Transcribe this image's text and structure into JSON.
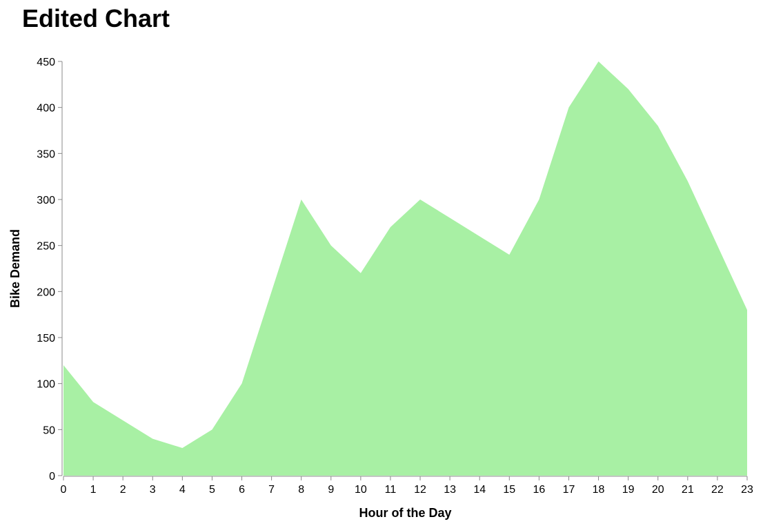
{
  "chart_data": {
    "type": "area",
    "title": "Edited Chart",
    "xlabel": "Hour of the Day",
    "ylabel": "Bike Demand",
    "x": [
      0,
      1,
      2,
      3,
      4,
      5,
      6,
      7,
      8,
      9,
      10,
      11,
      12,
      13,
      14,
      15,
      16,
      17,
      18,
      19,
      20,
      21,
      22,
      23
    ],
    "series": [
      {
        "values": [
          120,
          80,
          60,
          40,
          30,
          50,
          100,
          200,
          300,
          250,
          220,
          270,
          300,
          280,
          260,
          240,
          300,
          400,
          450,
          420,
          380,
          320,
          250,
          180
        ],
        "color": "#a8f0a4"
      }
    ],
    "xlim": [
      0,
      23
    ],
    "ylim": [
      0,
      450
    ],
    "xticks": [
      0,
      1,
      2,
      3,
      4,
      5,
      6,
      7,
      8,
      9,
      10,
      11,
      12,
      13,
      14,
      15,
      16,
      17,
      18,
      19,
      20,
      21,
      22,
      23
    ],
    "yticks": [
      0,
      50,
      100,
      150,
      200,
      250,
      300,
      350,
      400,
      450
    ],
    "grid": false,
    "legend": "none"
  }
}
